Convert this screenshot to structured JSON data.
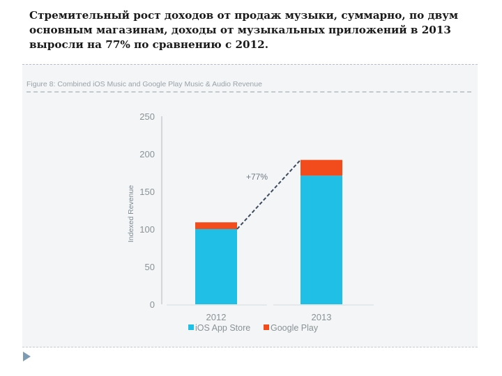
{
  "slide": {
    "text": "Стремительный рост доходов от продаж музыки, суммарно, по двум основным магазинам, доходы от музыкальных приложений в 2013 выросли на 77% по сравнению с 2012."
  },
  "chart_data": {
    "type": "bar",
    "stacked": true,
    "title": "Figure 8: Combined iOS Music and Google Play Music & Audio Revenue",
    "xlabel": "",
    "ylabel": "Indexed Revenue",
    "categories": [
      "2012",
      "2013"
    ],
    "series": [
      {
        "name": "iOS App Store",
        "color": "#1fbfe6",
        "values": [
          100,
          171
        ]
      },
      {
        "name": "Google Play",
        "color": "#f24c1c",
        "values": [
          9,
          21
        ]
      }
    ],
    "ylim": [
      0,
      250
    ],
    "yticks": [
      0,
      50,
      100,
      150,
      200,
      250
    ],
    "annotation": {
      "text": "+77%",
      "from": "2012",
      "to": "2013",
      "style": "dashed-line"
    },
    "grid": false,
    "legend": "bottom"
  },
  "colors": {
    "axis_text": "#8a9296",
    "axis_line": "#b3b9bd",
    "annotation_line": "#3c4a5c"
  },
  "icons": {
    "nav": "next-slide-arrow-icon"
  }
}
